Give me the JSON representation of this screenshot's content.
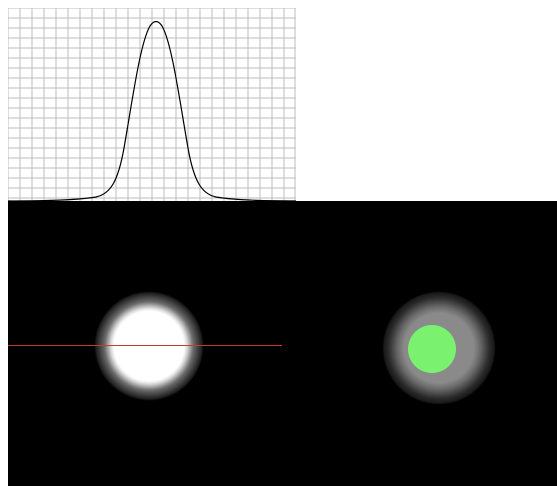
{
  "profile_plot": {
    "grid_visible": true,
    "grid_color": "#bdbdbd",
    "curve_color": "#000000",
    "curve_shape": "gaussian"
  },
  "viewer": {
    "background_color": "#000000",
    "profile_line_color": "#c83a2a",
    "mask_color": "#7bf26f"
  }
}
